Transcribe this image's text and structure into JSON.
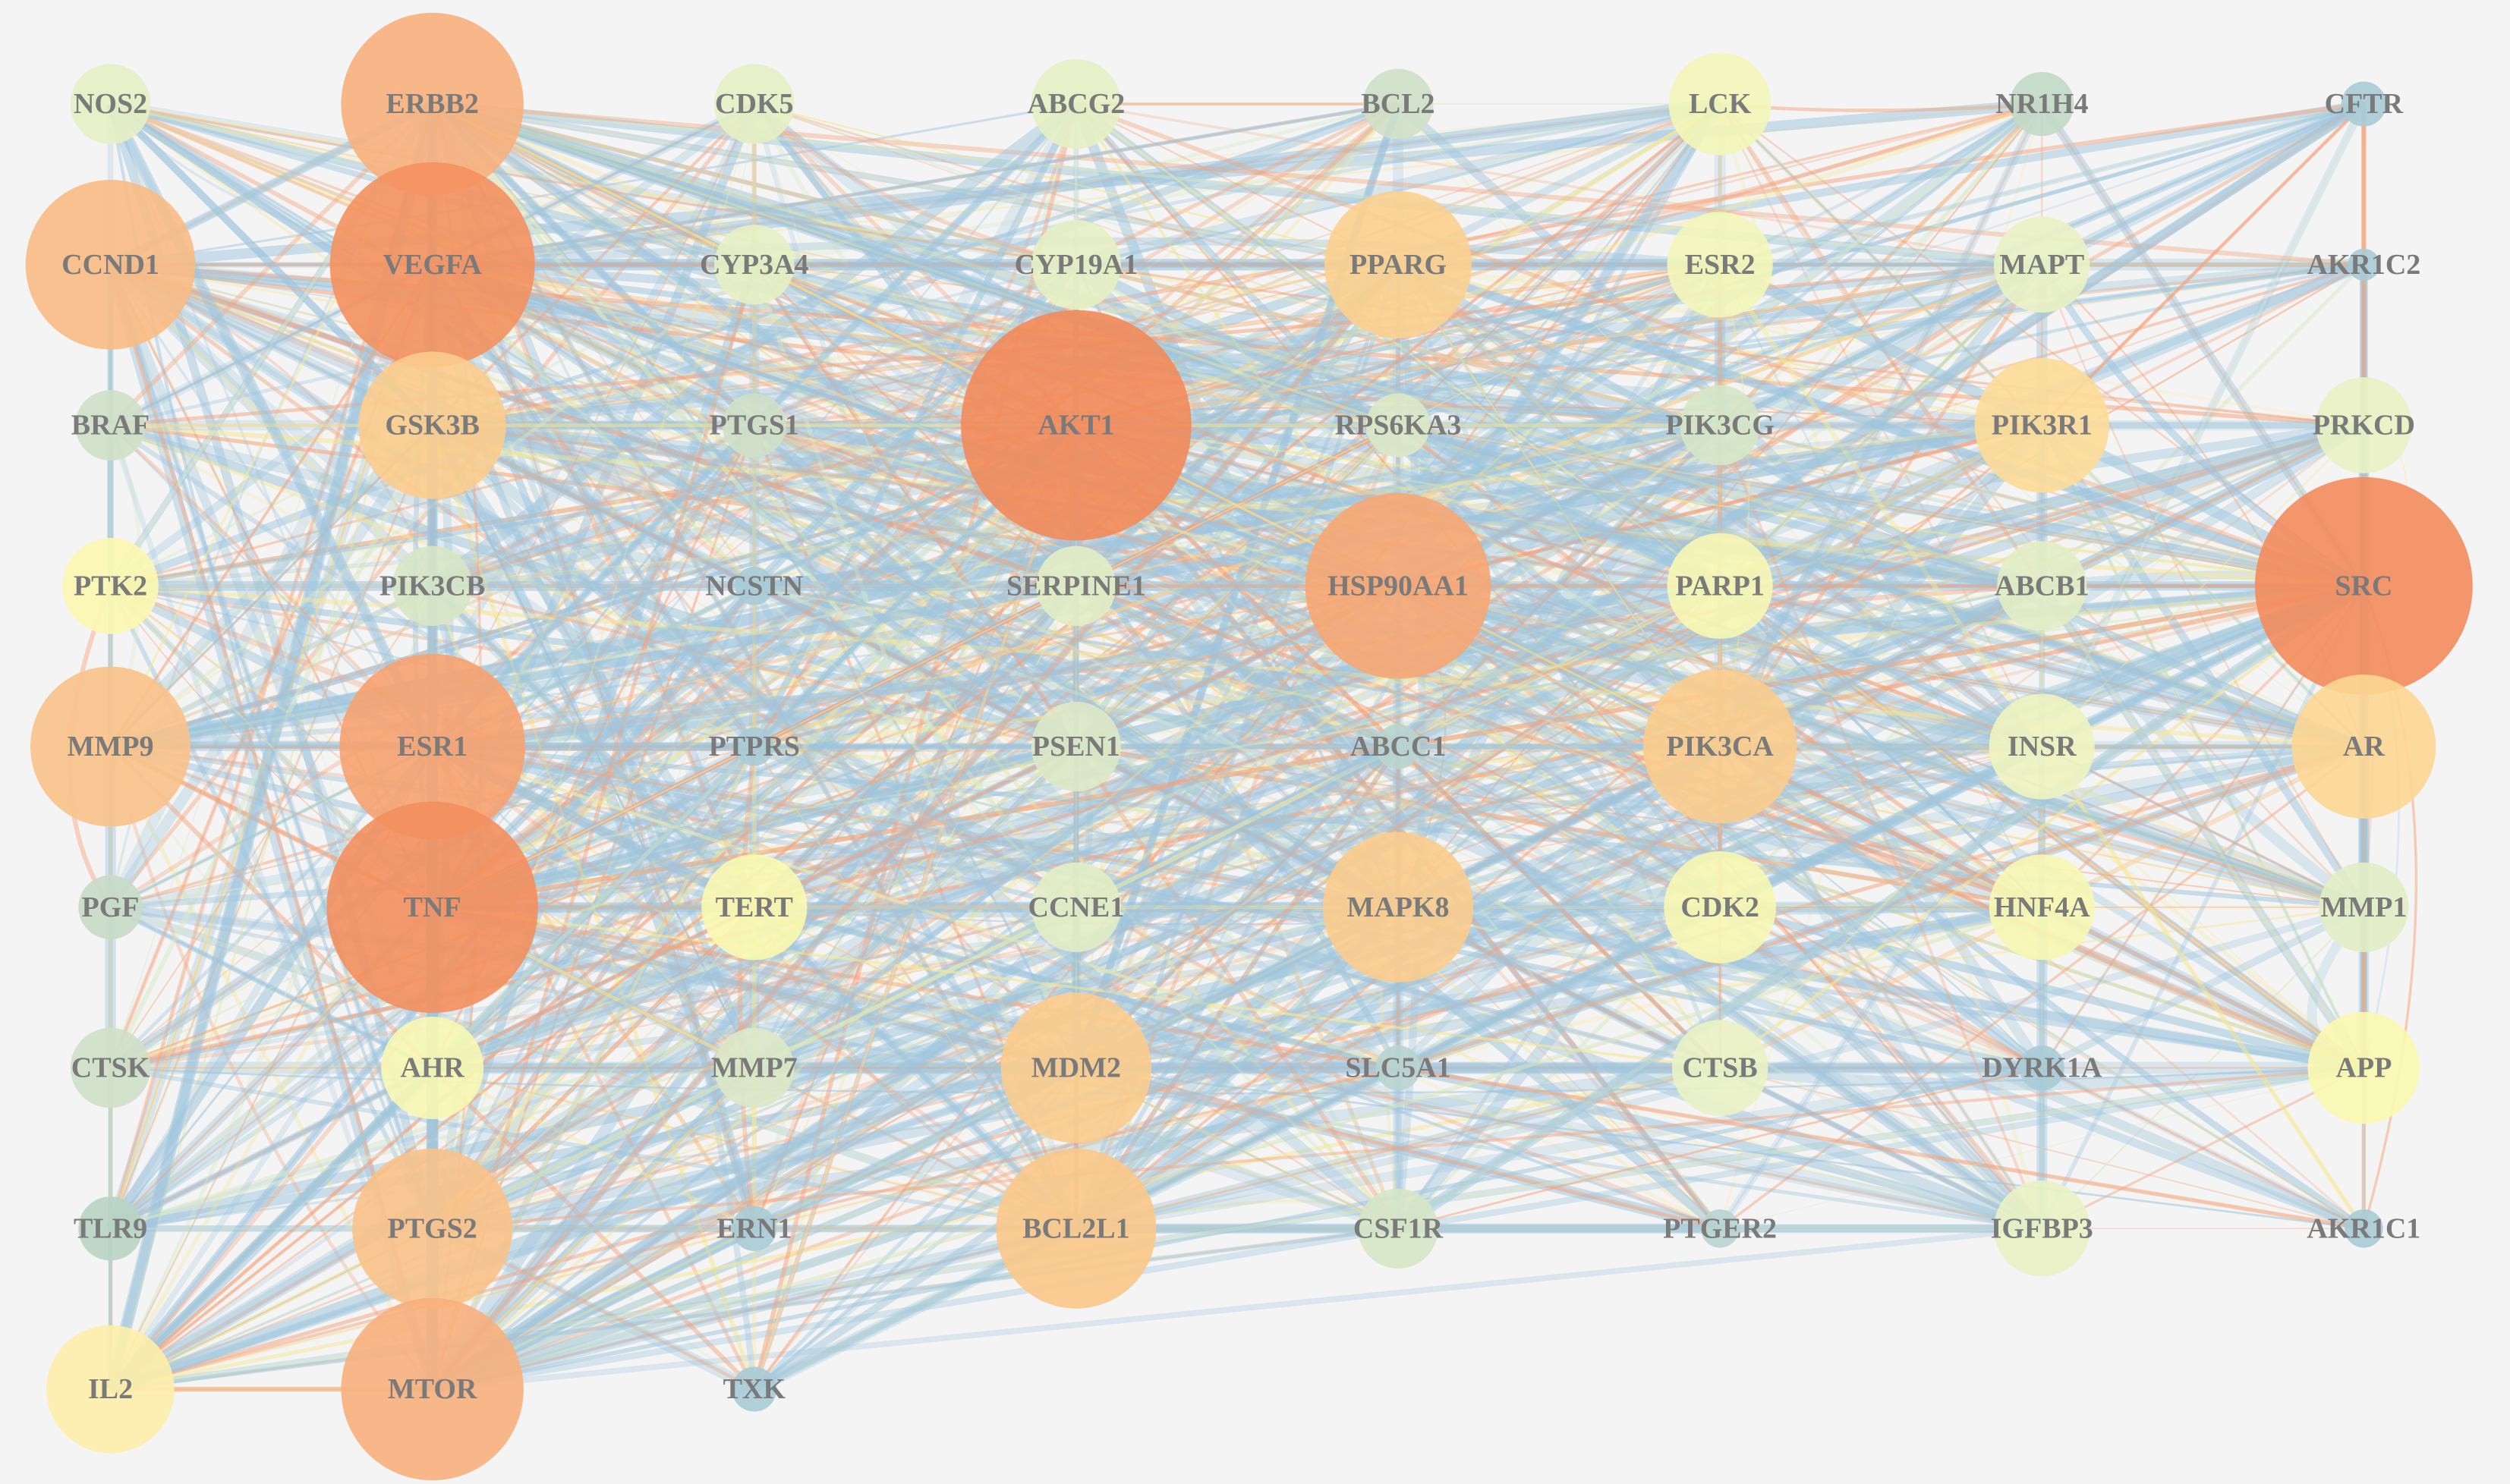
{
  "nodes": [
    {
      "label": "NOS2",
      "color": "#e6efc4"
    },
    {
      "label": "ERBB2",
      "color": "#f7b07d"
    },
    {
      "label": "CDK5",
      "color": "#e6efc4"
    },
    {
      "label": "ABCG2",
      "color": "#e6efc4"
    },
    {
      "label": "BCL2",
      "color": "#cfe0c8"
    },
    {
      "label": "LCK",
      "color": "#f3f6b8"
    },
    {
      "label": "NR1H4",
      "color": "#c3d9c7"
    },
    {
      "label": "CFTR",
      "color": "#a9cbd6"
    },
    {
      "label": "CCND1",
      "color": "#f8bb84"
    },
    {
      "label": "VEGFA",
      "color": "#f4915f"
    },
    {
      "label": "CYP3A4",
      "color": "#e6efc4"
    },
    {
      "label": "CYP19A1",
      "color": "#e6efc4"
    },
    {
      "label": "PPARG",
      "color": "#fbd08f"
    },
    {
      "label": "ESR2",
      "color": "#f3f6b8"
    },
    {
      "label": "MAPT",
      "color": "#eaf2c4"
    },
    {
      "label": "AKR1C2",
      "color": "#a9cbd6"
    },
    {
      "label": "BRAF",
      "color": "#cfe0c8"
    },
    {
      "label": "GSK3B",
      "color": "#fbcc8d"
    },
    {
      "label": "PTGS1",
      "color": "#cfe0c8"
    },
    {
      "label": "AKT1",
      "color": "#f28a5a"
    },
    {
      "label": "RPS6KA3",
      "color": "#dbe8c6"
    },
    {
      "label": "PIK3CG",
      "color": "#d6e5c6"
    },
    {
      "label": "PIK3R1",
      "color": "#fddc98"
    },
    {
      "label": "PRKCD",
      "color": "#eaf2c4"
    },
    {
      "label": "PTK2",
      "color": "#fcf8b0"
    },
    {
      "label": "PIK3CB",
      "color": "#d6e5c6"
    },
    {
      "label": "NCSTN",
      "color": "#a9cbd6"
    },
    {
      "label": "SERPINE1",
      "color": "#e2edc5"
    },
    {
      "label": "HSP90AA1",
      "color": "#f6a673"
    },
    {
      "label": "PARP1",
      "color": "#f7f7b4"
    },
    {
      "label": "ABCB1",
      "color": "#e2edc5"
    },
    {
      "label": "SRC",
      "color": "#f38c5d"
    },
    {
      "label": "MMP9",
      "color": "#f9c289"
    },
    {
      "label": "ESR1",
      "color": "#f6a270"
    },
    {
      "label": "PTPRS",
      "color": "#a9cbd6"
    },
    {
      "label": "PSEN1",
      "color": "#dbe8c6"
    },
    {
      "label": "ABCC1",
      "color": "#b8d4d0"
    },
    {
      "label": "PIK3CA",
      "color": "#fbcc8d"
    },
    {
      "label": "INSR",
      "color": "#eef4c0"
    },
    {
      "label": "AR",
      "color": "#fdd694"
    },
    {
      "label": "PGF",
      "color": "#c8dcc6"
    },
    {
      "label": "TNF",
      "color": "#f38f5e"
    },
    {
      "label": "TERT",
      "color": "#fbf8b0"
    },
    {
      "label": "CCNE1",
      "color": "#e2edc5"
    },
    {
      "label": "MAPK8",
      "color": "#fbcc8d"
    },
    {
      "label": "CDK2",
      "color": "#f7f7b4"
    },
    {
      "label": "HNF4A",
      "color": "#f7f7b4"
    },
    {
      "label": "MMP1",
      "color": "#e2edc5"
    },
    {
      "label": "CTSK",
      "color": "#cfe0c8"
    },
    {
      "label": "AHR",
      "color": "#f7f7b4"
    },
    {
      "label": "MMP7",
      "color": "#dbe8c6"
    },
    {
      "label": "MDM2",
      "color": "#fbcc8d"
    },
    {
      "label": "SLC5A1",
      "color": "#b8d4d0"
    },
    {
      "label": "CTSB",
      "color": "#eaf2c4"
    },
    {
      "label": "DYRK1A",
      "color": "#a9cbd6"
    },
    {
      "label": "APP",
      "color": "#fbf8b0"
    },
    {
      "label": "TLR9",
      "color": "#b8d4c4"
    },
    {
      "label": "PTGS2",
      "color": "#f9c289"
    },
    {
      "label": "ERN1",
      "color": "#a9cbd6"
    },
    {
      "label": "BCL2L1",
      "color": "#fbc88a"
    },
    {
      "label": "CSF1R",
      "color": "#d6e5c6"
    },
    {
      "label": "PTGER2",
      "color": "#b8d4d0"
    },
    {
      "label": "IGFBP3",
      "color": "#eaf2c4"
    },
    {
      "label": "AKR1C1",
      "color": "#a9cbd6"
    },
    {
      "label": "IL2",
      "color": "#feeeaa"
    },
    {
      "label": "MTOR",
      "color": "#f7b07d"
    },
    {
      "label": "TXK",
      "color": "#a9cbd6"
    }
  ]
}
